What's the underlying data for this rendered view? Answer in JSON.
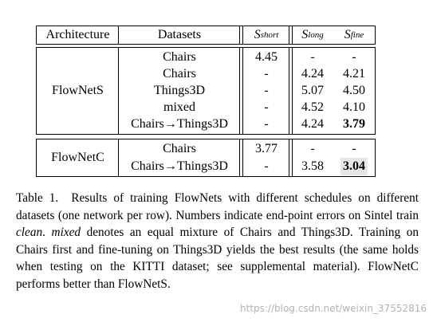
{
  "table": {
    "header": [
      "Architecture",
      "Datasets",
      {
        "symbol": "S",
        "subscript": "short"
      },
      {
        "symbol": "S",
        "subscript": "long"
      },
      {
        "symbol": "S",
        "subscript": "fine"
      }
    ],
    "groups": [
      {
        "architecture": "FlowNetS",
        "rows": [
          {
            "cells": [
              "Chairs",
              "4.45",
              "-",
              "-"
            ]
          },
          {
            "cells": [
              "Chairs",
              "-",
              "4.24",
              "4.21"
            ]
          },
          {
            "cells": [
              "Things3D",
              "-",
              "5.07",
              "4.50"
            ]
          },
          {
            "cells": [
              "mixed",
              "-",
              "4.52",
              "4.10"
            ]
          },
          {
            "cells": [
              "Chairs→Things3D",
              "-",
              "4.24",
              {
                "text": "3.79",
                "bold": true
              }
            ]
          }
        ]
      },
      {
        "architecture": "FlowNetC",
        "rows": [
          {
            "cells": [
              "Chairs",
              "3.77",
              "-",
              "-"
            ]
          },
          {
            "cells": [
              "Chairs→Things3D",
              "-",
              "3.58",
              {
                "text": "3.04",
                "bold": true,
                "highlight": true
              }
            ]
          }
        ]
      }
    ]
  },
  "caption": {
    "label": "Table 1.",
    "parts": [
      {
        "text": "Results of training FlowNets with different schedules on different datasets (one network per row). Numbers indicate end-point errors on Sintel train ",
        "italic": false
      },
      {
        "text": "clean",
        "italic": true
      },
      {
        "text": ". ",
        "italic": false
      },
      {
        "text": "mixed",
        "italic": true
      },
      {
        "text": " denotes an equal mixture of Chairs and Things3D. Training on Chairs first and fine-tuning on Things3D yields the best results (the same holds when testing on the KITTI dataset; see supplemental material). FlowNetC performs better than FlowNetS.",
        "italic": false
      }
    ]
  },
  "watermark": "https://blog.csdn.net/weixin_37552816"
}
